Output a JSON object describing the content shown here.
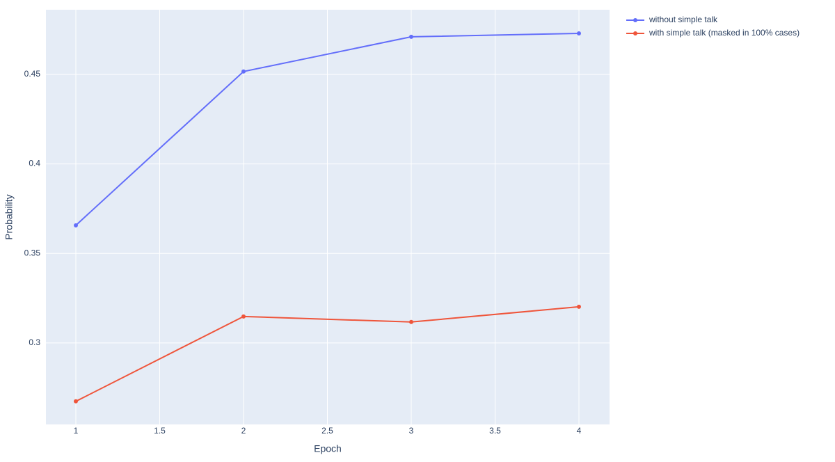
{
  "chart_data": {
    "type": "line",
    "x_label": "Epoch",
    "y_label": "Probability",
    "x": [
      1,
      2,
      3,
      4
    ],
    "series": [
      {
        "name": "without simple talk",
        "color": "#636efa",
        "values": [
          0.3657,
          0.4516,
          0.471,
          0.4729
        ]
      },
      {
        "name": "with simple talk (masked in 100% cases)",
        "color": "#ef553b",
        "values": [
          0.2674,
          0.3148,
          0.3117,
          0.3202
        ]
      }
    ],
    "xlim": [
      0.8216,
      4.1826
    ],
    "xticks": [
      1,
      1.5,
      2,
      2.5,
      3,
      3.5,
      4
    ],
    "ylim": [
      0.2545,
      0.4861
    ],
    "yticks": [
      0.3,
      0.35,
      0.4,
      0.45
    ],
    "grid": true,
    "legend": "top-right"
  }
}
